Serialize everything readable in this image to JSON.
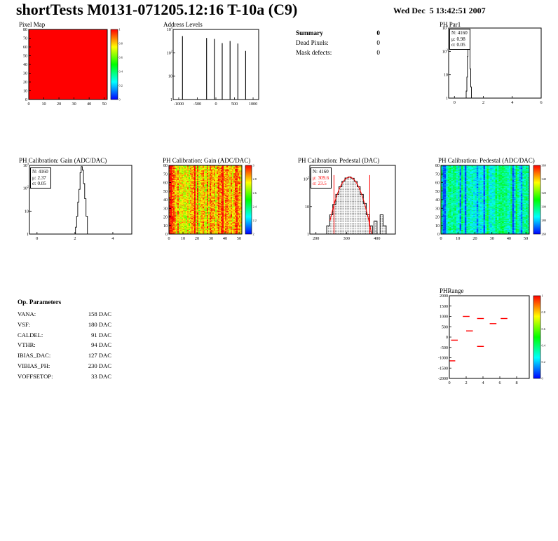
{
  "header": {
    "title": "shortTests M0131-071205.12:16 T-10a (C9)",
    "date": "Wed Dec  5 13:42:51 2007"
  },
  "colors": {
    "accent": "#ff0000",
    "line": "#000000"
  },
  "summary": {
    "heading": "Summary",
    "heading_value": "0",
    "rows": [
      {
        "label": "Dead Pixels:",
        "value": "0"
      },
      {
        "label": "Mask defects:",
        "value": "0"
      }
    ]
  },
  "op_parameters": {
    "heading": "Op. Parameters",
    "rows": [
      {
        "label": "VANA:",
        "value": "158 DAC"
      },
      {
        "label": "VSF:",
        "value": "180 DAC"
      },
      {
        "label": "CALDEL:",
        "value": "91 DAC"
      },
      {
        "label": "VTHR:",
        "value": "94 DAC"
      },
      {
        "label": "IBIAS_DAC:",
        "value": "127 DAC"
      },
      {
        "label": "VIBIAS_PH:",
        "value": "230 DAC"
      },
      {
        "label": "VOFFSETOP:",
        "value": "33 DAC"
      }
    ]
  },
  "chart_data": [
    {
      "id": "pixel_map",
      "type": "flat_map",
      "title": "Pixel Map",
      "x": {
        "min": 0,
        "max": 52,
        "ticks": [
          0,
          10,
          20,
          30,
          40,
          50
        ]
      },
      "y": {
        "min": 0,
        "max": 80,
        "ticks": [
          0,
          10,
          20,
          30,
          40,
          50,
          60,
          70,
          80
        ]
      },
      "fill": "#ff0000",
      "colorbar": {
        "ticks": [
          "1",
          "0.8",
          "0.6",
          "0.4",
          "0.2",
          "0"
        ]
      }
    },
    {
      "id": "address_levels",
      "type": "spikes_log",
      "title": "Address Levels",
      "x": {
        "min": -1150,
        "max": 1150,
        "ticks": [
          -1000,
          -500,
          0,
          500,
          1000
        ]
      },
      "ylog": {
        "decades": 3,
        "labels": [
          "10^3",
          "10^2",
          "10",
          "1"
        ]
      },
      "spikes": [
        [
          -900,
          520
        ],
        [
          -250,
          430
        ],
        [
          -40,
          390
        ],
        [
          170,
          260
        ],
        [
          380,
          320
        ],
        [
          590,
          250
        ],
        [
          800,
          120
        ]
      ]
    },
    {
      "id": "ph_par1",
      "type": "hist_log",
      "title": "PH Par1",
      "stats": {
        "n": "N: 4160",
        "mu": "μ: 0.98",
        "sigma": "σ: 0.05"
      },
      "x": {
        "min": -0.4,
        "max": 6,
        "ticks": [
          0,
          2,
          4,
          6
        ]
      },
      "ylog": {
        "decades": 3,
        "labels": [
          "10^3",
          "10^2",
          "10",
          "1"
        ]
      },
      "points": [
        [
          0.78,
          1
        ],
        [
          0.84,
          2
        ],
        [
          0.88,
          8
        ],
        [
          0.92,
          60
        ],
        [
          0.95,
          350
        ],
        [
          0.98,
          820
        ],
        [
          1.0,
          900
        ],
        [
          1.03,
          500
        ],
        [
          1.06,
          120
        ],
        [
          1.1,
          18
        ],
        [
          1.15,
          3
        ],
        [
          1.2,
          1
        ]
      ]
    },
    {
      "id": "gain_hist",
      "type": "hist_log",
      "title": "PH Calibration: Gain (ADC/DAC)",
      "stats": {
        "n": "N: 4160",
        "mu": "μ: 2.37",
        "sigma": "σ: 0.05"
      },
      "x": {
        "min": -0.4,
        "max": 5,
        "ticks": [
          0,
          2,
          4
        ]
      },
      "ylog": {
        "decades": 3,
        "labels": [
          "10^3",
          "10^2",
          "10",
          "1"
        ]
      },
      "points": [
        [
          2.0,
          1
        ],
        [
          2.06,
          2
        ],
        [
          2.12,
          6
        ],
        [
          2.18,
          25
        ],
        [
          2.24,
          90
        ],
        [
          2.3,
          480
        ],
        [
          2.36,
          880
        ],
        [
          2.42,
          620
        ],
        [
          2.48,
          160
        ],
        [
          2.55,
          35
        ],
        [
          2.62,
          6
        ],
        [
          2.7,
          1
        ]
      ]
    },
    {
      "id": "gain_map",
      "type": "heatmap",
      "variant": "warm",
      "seed": 7,
      "title": "PH Calibration: Gain (ADC/DAC)",
      "x": {
        "min": 0,
        "max": 52,
        "ticks": [
          0,
          10,
          20,
          30,
          40,
          50
        ]
      },
      "y": {
        "min": 0,
        "max": 80,
        "ticks": [
          0,
          10,
          20,
          30,
          40,
          50,
          60,
          70,
          80
        ]
      },
      "colorbar": {
        "ticks": [
          "3",
          "2.8",
          "2.6",
          "2.4",
          "2.2",
          "2"
        ]
      }
    },
    {
      "id": "pedestal_hist",
      "type": "pedestal_hist",
      "title": "PH Calibration: Pedestal (DAC)",
      "stats": {
        "n": "N: 4160",
        "mu": "μ: 309.6",
        "sigma": "σ: 23.5"
      },
      "x": {
        "min": 180,
        "max": 460,
        "ticks": [
          200,
          300,
          400
        ]
      },
      "ylog": {
        "decades": 2.5,
        "labels": [
          "10^2",
          "10",
          "1"
        ]
      },
      "bins": [
        [
          240,
          2
        ],
        [
          250,
          5
        ],
        [
          260,
          12
        ],
        [
          270,
          28
        ],
        [
          280,
          53
        ],
        [
          290,
          84
        ],
        [
          300,
          110
        ],
        [
          310,
          120
        ],
        [
          320,
          108
        ],
        [
          330,
          83
        ],
        [
          340,
          53
        ],
        [
          350,
          28
        ],
        [
          360,
          13
        ],
        [
          370,
          5
        ],
        [
          380,
          2
        ],
        [
          395,
          3
        ],
        [
          405,
          1
        ],
        [
          415,
          5
        ],
        [
          425,
          2
        ],
        [
          435,
          1
        ]
      ],
      "fit": {
        "mu": 309.6,
        "sigma": 23.5,
        "amp": 118
      },
      "vlines": [
        259,
        376
      ]
    },
    {
      "id": "pedestal_map",
      "type": "heatmap",
      "variant": "cool",
      "seed": 13,
      "title": "PH Calibration: Pedestal (ADC/DAC)",
      "x": {
        "min": 0,
        "max": 52,
        "ticks": [
          0,
          10,
          20,
          30,
          40,
          50
        ]
      },
      "y": {
        "min": 0,
        "max": 80,
        "ticks": [
          0,
          10,
          20,
          30,
          40,
          50,
          60,
          70,
          80
        ]
      },
      "colorbar": {
        "ticks": [
          "360",
          "340",
          "320",
          "300",
          "280",
          "260"
        ]
      }
    },
    {
      "id": "ph_range",
      "type": "dashes",
      "title": "PHRange",
      "x": {
        "min": 0,
        "max": 9.5,
        "ticks": [
          0,
          2,
          4,
          6,
          8
        ]
      },
      "y": {
        "min": -2000,
        "max": 2000,
        "ticks": [
          2000,
          1500,
          1000,
          500,
          0,
          -500,
          -1000,
          -1500,
          -2000
        ]
      },
      "segments": [
        [
          1.6,
          2.4,
          1000
        ],
        [
          3.3,
          4.1,
          900
        ],
        [
          4.8,
          5.6,
          650
        ],
        [
          6.1,
          6.9,
          900
        ],
        [
          2.0,
          2.8,
          300
        ],
        [
          0.2,
          1.0,
          -150
        ],
        [
          3.3,
          4.1,
          -450
        ],
        [
          0.0,
          0.7,
          -1150
        ]
      ],
      "colorbar": {
        "ticks": [
          "1",
          "0.8",
          "0.6",
          "0.4",
          "0.2",
          "0"
        ]
      }
    }
  ]
}
